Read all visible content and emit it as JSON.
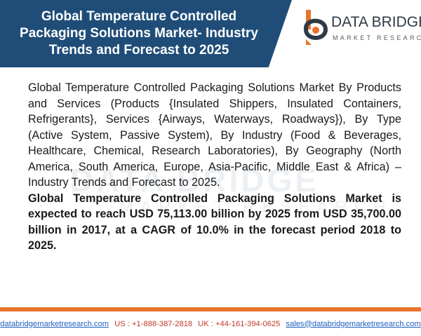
{
  "header": {
    "title": "Global Temperature Controlled Packaging Solutions Market- Industry Trends and Forecast to 2025"
  },
  "logo": {
    "name": "DATA BRIDGE",
    "subtitle": "MARKET RESEARCH",
    "icon": "data-bridge-logo-icon"
  },
  "watermark": {
    "name": "DATA BRIDGE",
    "subtitle": "MARKET RESEARCH"
  },
  "body": {
    "paragraph": "Global Temperature Controlled Packaging Solutions Market By Products and Services (Products {Insulated Shippers, Insulated Containers, Refrigerants}, Services {Airways, Waterways, Roadways}), By Type (Active System, Passive System), By Industry (Food & Beverages, Healthcare, Chemical, Research Laboratories), By Geography (North America, South America, Europe, Asia-Pacific, Middle East & Africa) – Industry Trends and Forecast to 2025.",
    "highlight": "Global Temperature Controlled Packaging Solutions Market is expected to reach USD 75,113.00 billion by 2025 from USD 35,700.00 billion in 2017, at a CAGR of 10.0% in the forecast period 2018 to 2025."
  },
  "footer": {
    "website": "databridgemarketresearch.com",
    "us_phone": "US : +1-888-387-2818",
    "uk_phone": "UK : +44-161-394-0625",
    "email": "sales@databridgemarketresearch.com"
  },
  "colors": {
    "title_band": "#1f4d78",
    "accent_orange": "#e8732a",
    "link_blue": "#1f5fbf",
    "phone_red": "#c0392b"
  }
}
